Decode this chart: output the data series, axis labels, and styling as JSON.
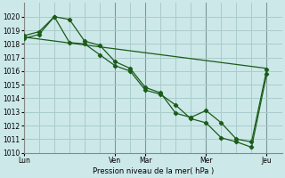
{
  "background_color": "#cce8e8",
  "grid_color": "#aacccc",
  "line_color": "#1a5c1a",
  "xlabel": "Pression niveau de la mer( hPa )",
  "ylim": [
    1010,
    1021
  ],
  "yticks": [
    1010,
    1011,
    1012,
    1013,
    1014,
    1015,
    1016,
    1017,
    1018,
    1019,
    1020
  ],
  "xtick_labels": [
    "Lun",
    "Ven",
    "Mar",
    "Mer",
    "Jeu"
  ],
  "xtick_positions": [
    0,
    3,
    4,
    6,
    8
  ],
  "vline_positions": [
    0,
    3,
    4,
    6,
    8
  ],
  "series1_x": [
    0,
    0.5,
    1,
    1.5,
    2,
    2.5,
    3,
    3.5,
    4,
    4.5,
    5,
    5.5,
    6,
    6.5,
    7,
    7.5,
    8
  ],
  "series1_y": [
    1018.6,
    1018.9,
    1020.0,
    1019.8,
    1018.2,
    1017.9,
    1016.7,
    1016.2,
    1014.8,
    1014.4,
    1012.9,
    1012.6,
    1013.1,
    1012.2,
    1011.0,
    1010.8,
    1016.1
  ],
  "series2_x": [
    0,
    0.5,
    1,
    1.5,
    2,
    2.5,
    3,
    3.5,
    4,
    4.5,
    5,
    5.5,
    6,
    6.5,
    7,
    7.5,
    8
  ],
  "series2_y": [
    1018.4,
    1018.7,
    1020.0,
    1018.1,
    1018.0,
    1017.2,
    1016.4,
    1016.0,
    1014.6,
    1014.3,
    1013.5,
    1012.5,
    1012.2,
    1011.1,
    1010.8,
    1010.4,
    1015.8
  ],
  "series3_x": [
    0,
    8
  ],
  "series3_y": [
    1018.5,
    1016.2
  ],
  "xlim": [
    0,
    8.5
  ]
}
